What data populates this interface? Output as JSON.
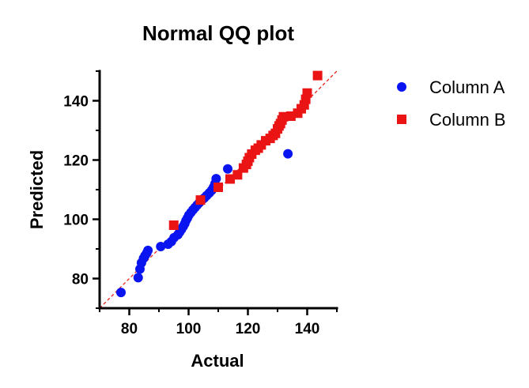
{
  "chart_data": {
    "type": "scatter",
    "title": "Normal QQ plot",
    "xlabel": "Actual",
    "ylabel": "Predicted",
    "xlim": [
      70,
      150
    ],
    "ylim": [
      70,
      150
    ],
    "xticks": [
      "80",
      "100",
      "120",
      "140"
    ],
    "yticks": [
      "80",
      "100",
      "120",
      "140"
    ],
    "grid": false,
    "legend_position": "right",
    "reference_line": {
      "style": "dashed",
      "color": "#e8231e",
      "slope": 1,
      "intercept": 0
    },
    "series": [
      {
        "name": "Column A",
        "marker": "circle",
        "color": "#0a14f0",
        "x": [
          77.2,
          83.0,
          83.6,
          84.1,
          84.8,
          85.3,
          85.9,
          86.3,
          90.6,
          93.1,
          94.2,
          95.1,
          96.4,
          97.0,
          97.6,
          98.2,
          98.7,
          99.1,
          99.6,
          100.1,
          100.8,
          101.5,
          102.2,
          102.9,
          103.6,
          104.4,
          105.3,
          106.1,
          107.0,
          107.8,
          108.4,
          108.9,
          109.3,
          113.2,
          133.5
        ],
        "y": [
          75.3,
          80.3,
          83.2,
          85.3,
          86.8,
          87.7,
          88.6,
          89.5,
          90.8,
          91.6,
          92.5,
          93.8,
          94.8,
          95.7,
          96.6,
          97.6,
          98.5,
          99.5,
          100.4,
          101.4,
          102.3,
          103.2,
          104.0,
          104.8,
          105.6,
          106.4,
          107.2,
          108.0,
          108.9,
          109.8,
          110.8,
          112.0,
          113.7,
          117.0,
          122.1
        ]
      },
      {
        "name": "Column B",
        "marker": "square",
        "color": "#ea1414",
        "x": [
          95.0,
          104.0,
          110.0,
          114.0,
          116.5,
          118.5,
          119.5,
          120.0,
          120.5,
          121.3,
          122.5,
          123.5,
          124.5,
          126.0,
          127.5,
          128.5,
          129.3,
          130.0,
          130.5,
          131.0,
          131.5,
          132.0,
          134.5,
          136.8,
          138.0,
          139.0,
          139.5,
          140.0,
          143.5
        ],
        "y": [
          98.0,
          106.5,
          110.8,
          113.6,
          115.0,
          117.3,
          118.5,
          119.6,
          120.8,
          122.0,
          123.3,
          124.0,
          125.1,
          126.5,
          127.3,
          128.3,
          129.0,
          130.5,
          131.5,
          132.3,
          133.5,
          134.6,
          134.8,
          135.8,
          137.3,
          138.6,
          140.5,
          142.6,
          148.5
        ]
      }
    ]
  }
}
